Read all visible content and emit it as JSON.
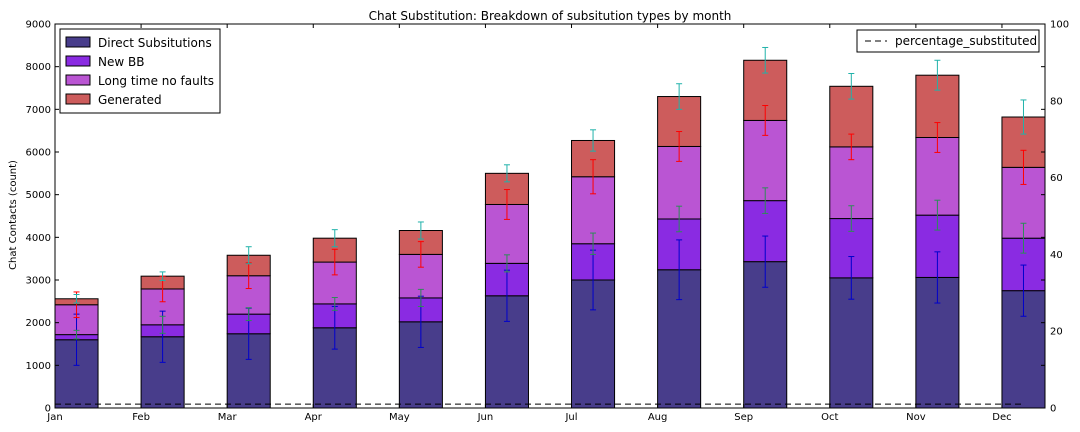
{
  "chart_data": {
    "type": "bar",
    "stacked": true,
    "title": "Chat Substitution: Breakdown of subsitution types by month",
    "ylabel": "Chat Contacts (count)",
    "xlabel": "",
    "ylim": [
      0,
      9000
    ],
    "y_ticks": [
      0,
      1000,
      2000,
      3000,
      4000,
      5000,
      6000,
      7000,
      8000,
      9000
    ],
    "y2lim": [
      0,
      100
    ],
    "y2_ticks": [
      0,
      20,
      40,
      60,
      80,
      100
    ],
    "categories": [
      "Jan",
      "Feb",
      "Mar",
      "Apr",
      "May",
      "Jun",
      "Jul",
      "Aug",
      "Sep",
      "Oct",
      "Nov",
      "Dec"
    ],
    "series": [
      {
        "name": "Direct Subsitutions",
        "color": "#483d8b",
        "values": [
          1600,
          1670,
          1740,
          1880,
          2020,
          2630,
          3000,
          3240,
          3430,
          3050,
          3060,
          2750
        ],
        "errors": [
          600,
          600,
          600,
          500,
          600,
          600,
          700,
          700,
          600,
          500,
          600,
          600
        ],
        "error_color": "#0000cc"
      },
      {
        "name": "New BB",
        "color": "#8a2be2",
        "values": [
          120,
          280,
          460,
          560,
          560,
          760,
          850,
          1190,
          1430,
          1390,
          1460,
          1230
        ],
        "errors": [
          100,
          200,
          150,
          150,
          200,
          200,
          250,
          300,
          300,
          300,
          350,
          350
        ],
        "error_color": "#2e8b57"
      },
      {
        "name": "Long time no faults",
        "color": "#ba55d3",
        "values": [
          700,
          840,
          900,
          980,
          1020,
          1380,
          1570,
          1700,
          1880,
          1680,
          1820,
          1660
        ],
        "errors": [
          300,
          300,
          300,
          300,
          300,
          350,
          400,
          350,
          350,
          300,
          350,
          400
        ],
        "error_color": "#ff0000"
      },
      {
        "name": "Generated",
        "color": "#cd5c5c",
        "values": [
          140,
          300,
          480,
          560,
          560,
          730,
          850,
          1170,
          1410,
          1420,
          1460,
          1180
        ],
        "errors": [
          100,
          100,
          200,
          200,
          200,
          200,
          250,
          300,
          300,
          300,
          350,
          400
        ],
        "error_color": "#20b2aa"
      }
    ],
    "line_series": {
      "name": "percentage_substituted",
      "axis": "right",
      "style": "dashed",
      "color": "#000000",
      "values": [
        1,
        1,
        1,
        1,
        1,
        1,
        1,
        1,
        1,
        1,
        1,
        1
      ]
    },
    "legend_left_placement": "upper-left",
    "legend_right_placement": "upper-right",
    "grid": false
  }
}
